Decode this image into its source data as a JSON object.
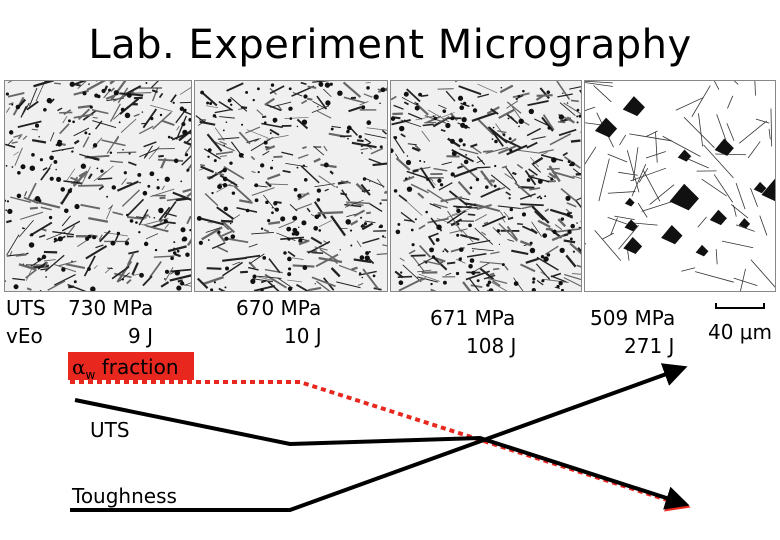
{
  "title": "Lab. Experiment Micrography",
  "row_labels": {
    "uts": "UTS",
    "veo": "vEo"
  },
  "samples": [
    {
      "uts": "730 MPa",
      "veo": "9 J"
    },
    {
      "uts": "670 MPa",
      "veo": "10 J"
    },
    {
      "uts": "671 MPa",
      "veo": "108 J"
    },
    {
      "uts": "509 MPa",
      "veo": "271 J"
    }
  ],
  "scale_bar": {
    "text": "40 μm"
  },
  "alpha_label": {
    "symbol": "α",
    "subscript": "w",
    "text": " fraction"
  },
  "trend_labels": {
    "uts": "UTS",
    "toughness": "Toughness"
  },
  "colors": {
    "alpha_line": "#e8271f",
    "black": "#000000"
  }
}
